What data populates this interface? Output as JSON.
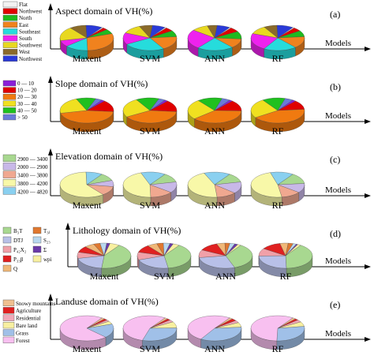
{
  "x_axis_label": "Models",
  "models": [
    "Maxent",
    "SVM",
    "ANN",
    "RF"
  ],
  "chart_data": [
    {
      "type": "pie",
      "panel_label": "(a)",
      "title": "Aspect domain of VH(%)",
      "legend_position": "left",
      "categories": [
        "Flat",
        "Northwest",
        "North",
        "East",
        "Southeast",
        "South",
        "Southwest",
        "West",
        "Northwest"
      ],
      "colors": [
        "#f2f2f2",
        "#e00000",
        "#1fba1f",
        "#f0821e",
        "#26dcdc",
        "#ee22ee",
        "#e8d820",
        "#8a6a2a",
        "#2a3ad8"
      ],
      "series": [
        {
          "name": "Maxent",
          "values": [
            1,
            3,
            6,
            30,
            14,
            8,
            18,
            10,
            10
          ]
        },
        {
          "name": "SVM",
          "values": [
            1,
            5,
            8,
            18,
            25,
            15,
            12,
            8,
            8
          ]
        },
        {
          "name": "ANN",
          "values": [
            1,
            6,
            10,
            12,
            22,
            25,
            10,
            6,
            8
          ]
        },
        {
          "name": "RF",
          "values": [
            1,
            5,
            8,
            15,
            20,
            22,
            11,
            8,
            10
          ]
        }
      ]
    },
    {
      "type": "pie",
      "panel_label": "(b)",
      "title": "Slope domain of VH(%)",
      "legend_position": "left",
      "categories": [
        "0 — 10",
        "10 — 20",
        "20 — 30",
        "30 — 40",
        "40 — 50",
        "> 50"
      ],
      "colors": [
        "#8a1fd8",
        "#e00000",
        "#f07a10",
        "#f0e020",
        "#1fc01f",
        "#6a7ad8"
      ],
      "series": [
        {
          "name": "Maxent",
          "values": [
            2,
            15,
            45,
            22,
            12,
            4
          ]
        },
        {
          "name": "SVM",
          "values": [
            2,
            15,
            40,
            25,
            14,
            4
          ]
        },
        {
          "name": "ANN",
          "values": [
            2,
            14,
            38,
            26,
            15,
            5
          ]
        },
        {
          "name": "RF",
          "values": [
            2,
            12,
            42,
            25,
            14,
            5
          ]
        }
      ]
    },
    {
      "type": "pie",
      "panel_label": "(c)",
      "title": "Elevation domain of VH(%)",
      "legend_position": "left",
      "categories": [
        "2900 — 3400",
        "2000 — 2900",
        "3400 — 3800",
        "3800 — 4200",
        "4200 — 4820"
      ],
      "colors": [
        "#a8d890",
        "#c8b8e8",
        "#f0a890",
        "#f8f8a8",
        "#8ad0f0"
      ],
      "series": [
        {
          "name": "Maxent",
          "values": [
            10,
            8,
            12,
            60,
            10
          ]
        },
        {
          "name": "SVM",
          "values": [
            12,
            14,
            14,
            45,
            15
          ]
        },
        {
          "name": "ANN",
          "values": [
            12,
            15,
            12,
            45,
            16
          ]
        },
        {
          "name": "RF",
          "values": [
            14,
            12,
            12,
            48,
            14
          ]
        }
      ]
    },
    {
      "type": "pie",
      "panel_label": "(d)",
      "title": "Lithology domain of VH(%)",
      "legend_position": "left",
      "categories": [
        "B₃T",
        "DTJ",
        "P₄₂X₂",
        "P₃₃β",
        "Q",
        "T₃ⱼ",
        "S₂₃",
        "Σ",
        "wpi"
      ],
      "colors": [
        "#a8d890",
        "#b8c0e8",
        "#f0a0a8",
        "#e02020",
        "#f0b878",
        "#e07830",
        "#b8d8f0",
        "#6a3aa8",
        "#f8f0a0"
      ],
      "series": [
        {
          "name": "Maxent",
          "values": [
            42,
            20,
            8,
            8,
            6,
            4,
            4,
            2,
            6
          ]
        },
        {
          "name": "SVM",
          "values": [
            38,
            22,
            10,
            10,
            6,
            4,
            4,
            2,
            4
          ]
        },
        {
          "name": "ANN",
          "values": [
            35,
            28,
            10,
            12,
            5,
            3,
            3,
            2,
            2
          ]
        },
        {
          "name": "RF",
          "values": [
            40,
            25,
            10,
            12,
            5,
            3,
            2,
            1,
            2
          ]
        }
      ]
    },
    {
      "type": "pie",
      "panel_label": "(e)",
      "title": "Landuse domain of VH(%)",
      "legend_position": "left",
      "categories": [
        "Snowy mountains",
        "Agriculture",
        "Residential",
        "Bare land",
        "Grass",
        "Forest"
      ],
      "colors": [
        "#f0c090",
        "#e02020",
        "#f0a8b8",
        "#f8f0a0",
        "#a0c0e8",
        "#f8c0f0"
      ],
      "series": [
        {
          "name": "Maxent",
          "values": [
            2,
            2,
            2,
            4,
            18,
            72
          ]
        },
        {
          "name": "SVM",
          "values": [
            2,
            2,
            3,
            8,
            30,
            55
          ]
        },
        {
          "name": "ANN",
          "values": [
            2,
            3,
            3,
            6,
            35,
            51
          ]
        },
        {
          "name": "RF",
          "values": [
            2,
            2,
            3,
            6,
            28,
            59
          ]
        }
      ]
    }
  ]
}
